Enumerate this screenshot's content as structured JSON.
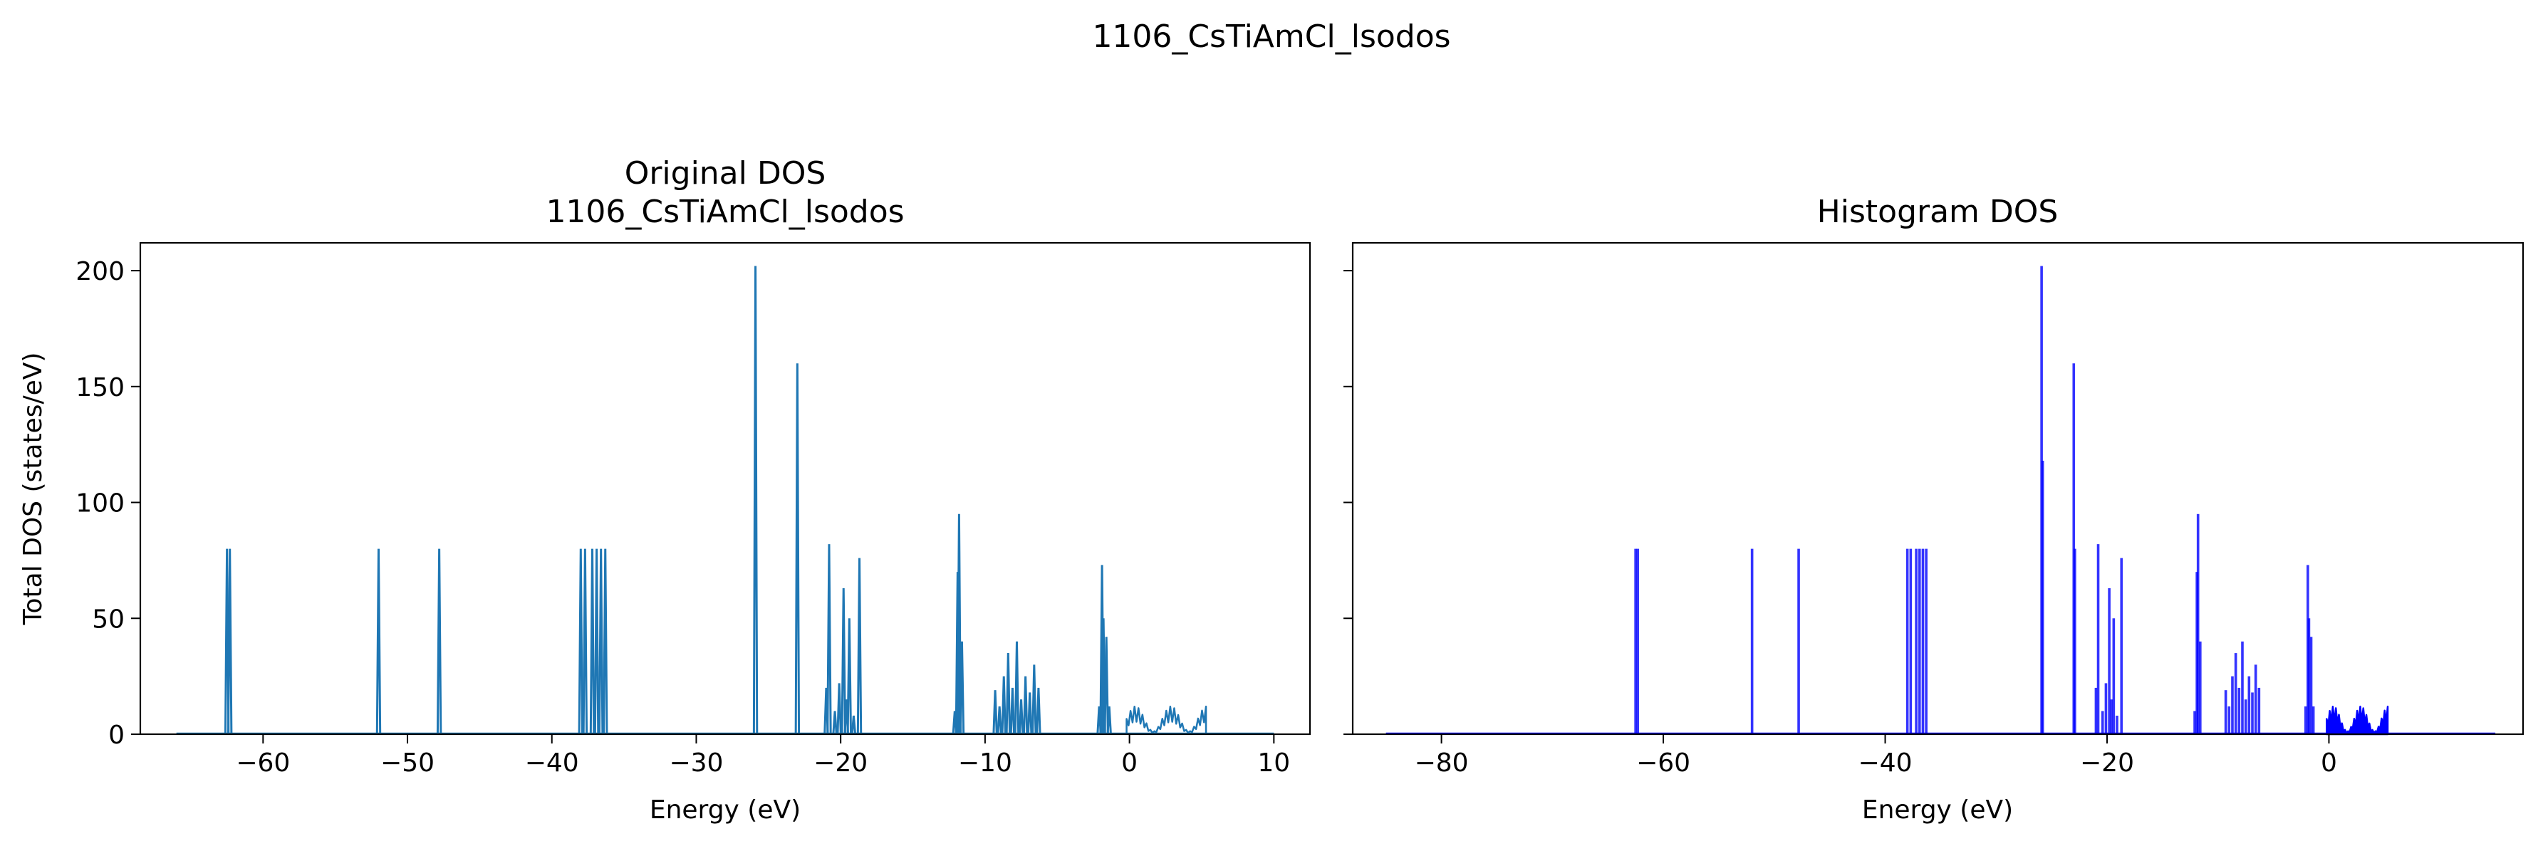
{
  "figure": {
    "suptitle": "1106_CsTiAmCl_lsodos"
  },
  "chart_data": [
    {
      "type": "line",
      "title_line1": "Original DOS",
      "title_line2": "1106_CsTiAmCl_lsodos",
      "xlabel": "Energy (eV)",
      "ylabel": "Total DOS (states/eV)",
      "xlim": [
        -68.5,
        12.5
      ],
      "ylim": [
        0,
        212
      ],
      "xticks": [
        -60,
        -50,
        -40,
        -30,
        -20,
        -10,
        0,
        10
      ],
      "xtick_labels": [
        "−60",
        "−50",
        "−40",
        "−30",
        "−20",
        "−10",
        "0",
        "10"
      ],
      "yticks": [
        0,
        50,
        100,
        150,
        200
      ],
      "ytick_labels": [
        "0",
        "50",
        "100",
        "150",
        "200"
      ],
      "color": "#1f77b4",
      "baseline_range": [
        -66,
        10
      ],
      "peaks": [
        [
          -62.5,
          80
        ],
        [
          -62.3,
          80
        ],
        [
          -52,
          80
        ],
        [
          -47.8,
          80
        ],
        [
          -38,
          80
        ],
        [
          -37.7,
          80
        ],
        [
          -37.2,
          80
        ],
        [
          -36.9,
          80
        ],
        [
          -36.6,
          80
        ],
        [
          -36.3,
          80
        ],
        [
          -25.9,
          202
        ],
        [
          -23,
          160
        ],
        [
          -21,
          20
        ],
        [
          -20.8,
          82
        ],
        [
          -20.4,
          10
        ],
        [
          -20.1,
          22
        ],
        [
          -19.8,
          63
        ],
        [
          -19.6,
          15
        ],
        [
          -19.4,
          50
        ],
        [
          -19.1,
          8
        ],
        [
          -18.7,
          76
        ],
        [
          -12.1,
          10
        ],
        [
          -11.9,
          70
        ],
        [
          -11.8,
          95
        ],
        [
          -11.6,
          40
        ],
        [
          -9.3,
          19
        ],
        [
          -9,
          12
        ],
        [
          -8.7,
          25
        ],
        [
          -8.4,
          35
        ],
        [
          -8.1,
          20
        ],
        [
          -7.8,
          40
        ],
        [
          -7.5,
          15
        ],
        [
          -7.2,
          25
        ],
        [
          -6.9,
          18
        ],
        [
          -6.6,
          30
        ],
        [
          -6.3,
          20
        ],
        [
          -2.1,
          12
        ],
        [
          -1.9,
          73
        ],
        [
          -1.8,
          50
        ],
        [
          -1.6,
          42
        ],
        [
          -1.4,
          12
        ]
      ],
      "bands": [
        {
          "range": [
            -0.2,
            5.3
          ],
          "level": 12
        }
      ]
    },
    {
      "type": "bar",
      "title": "Histogram DOS",
      "xlabel": "Energy (eV)",
      "ylabel": "",
      "xlim": [
        -88,
        17.5
      ],
      "ylim": [
        0,
        212
      ],
      "xticks": [
        -80,
        -60,
        -40,
        -20,
        0
      ],
      "xtick_labels": [
        "−80",
        "−60",
        "−40",
        "−20",
        "0"
      ],
      "yticks": [
        0,
        50,
        100,
        150,
        200
      ],
      "ytick_labels": [
        "",
        "",
        "",
        "",
        ""
      ],
      "sharey": true,
      "color": "#0000ff",
      "baseline_range": [
        -85,
        15
      ],
      "peaks": [
        [
          -62.5,
          80
        ],
        [
          -62.3,
          80
        ],
        [
          -52,
          80
        ],
        [
          -47.8,
          80
        ],
        [
          -38,
          80
        ],
        [
          -37.7,
          80
        ],
        [
          -37.2,
          80
        ],
        [
          -36.9,
          80
        ],
        [
          -36.6,
          80
        ],
        [
          -36.3,
          80
        ],
        [
          -25.9,
          202
        ],
        [
          -25.8,
          118
        ],
        [
          -23,
          160
        ],
        [
          -22.9,
          80
        ],
        [
          -21,
          20
        ],
        [
          -20.8,
          82
        ],
        [
          -20.4,
          10
        ],
        [
          -20.1,
          22
        ],
        [
          -19.8,
          63
        ],
        [
          -19.6,
          15
        ],
        [
          -19.4,
          50
        ],
        [
          -19.1,
          8
        ],
        [
          -18.7,
          76
        ],
        [
          -12.1,
          10
        ],
        [
          -11.9,
          70
        ],
        [
          -11.8,
          95
        ],
        [
          -11.6,
          40
        ],
        [
          -9.3,
          19
        ],
        [
          -9,
          12
        ],
        [
          -8.7,
          25
        ],
        [
          -8.4,
          35
        ],
        [
          -8.1,
          20
        ],
        [
          -7.8,
          40
        ],
        [
          -7.5,
          15
        ],
        [
          -7.2,
          25
        ],
        [
          -6.9,
          18
        ],
        [
          -6.6,
          30
        ],
        [
          -6.3,
          20
        ],
        [
          -2.1,
          12
        ],
        [
          -1.9,
          73
        ],
        [
          -1.8,
          50
        ],
        [
          -1.6,
          42
        ],
        [
          -1.4,
          12
        ]
      ],
      "bands": [
        {
          "range": [
            -0.2,
            5.3
          ],
          "level": 12
        }
      ]
    }
  ]
}
